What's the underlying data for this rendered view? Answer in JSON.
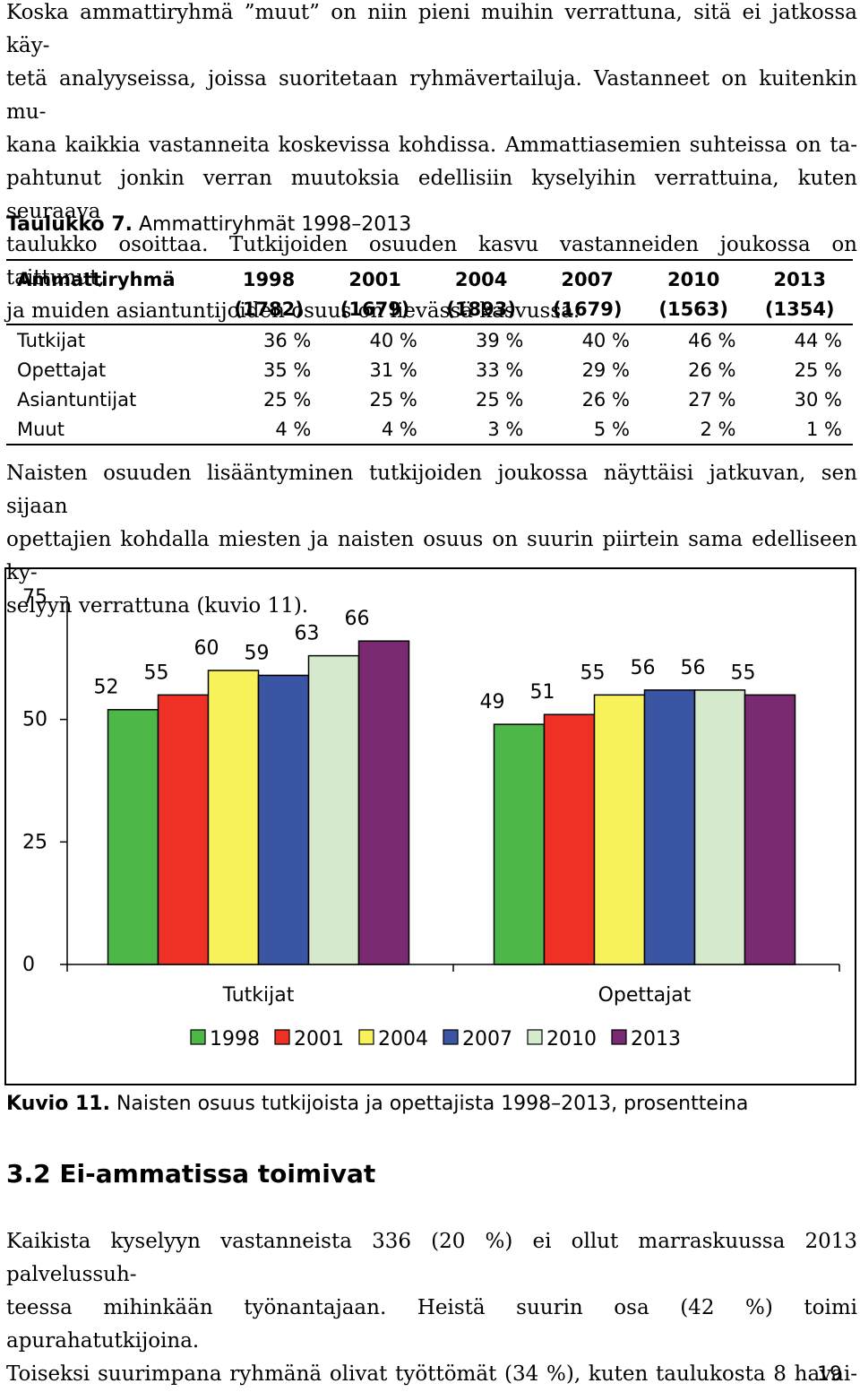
{
  "intro_paragraph": {
    "lines": [
      "Koska ammattiryhmä ”muut” on niin pieni muihin verrattuna, sitä ei jatkossa käy-",
      "tetä analyyseissa, joissa suoritetaan ryhmävertailuja. Vastanneet on kuitenkin mu-",
      "kana kaikkia vastanneita koskevissa kohdissa. Ammattiasemien suhteissa on ta-",
      "pahtunut jonkin verran muutoksia edellisiin kyselyihin verrattuina, kuten seuraava",
      "taulukko osoittaa. Tutkijoiden osuuden kasvu vastanneiden joukossa on taittunut,",
      "ja muiden asiantuntijoiden osuus on lievässä kasvussa."
    ]
  },
  "table": {
    "caption_label": "Taulukko 7.",
    "caption_text": "Ammattiryhmät 1998–2013",
    "header_first": "Ammattiryhmä",
    "years": [
      "1998",
      "2001",
      "2004",
      "2007",
      "2010",
      "2013"
    ],
    "counts": [
      "(1782)",
      "(1679)",
      "(1893)",
      "(1679)",
      "(1563)",
      "(1354)"
    ],
    "rows": [
      {
        "label": "Tutkijat",
        "values": [
          "36 %",
          "40 %",
          "39 %",
          "40 %",
          "46 %",
          "44 %"
        ]
      },
      {
        "label": "Opettajat",
        "values": [
          "35 %",
          "31 %",
          "33 %",
          "29 %",
          "26 %",
          "25 %"
        ]
      },
      {
        "label": "Asiantuntijat",
        "values": [
          "25 %",
          "25 %",
          "25 %",
          "26 %",
          "27 %",
          "30 %"
        ]
      },
      {
        "label": "Muut",
        "values": [
          "4 %",
          "4 %",
          "3 %",
          "5 %",
          "2 %",
          "1 %"
        ]
      }
    ]
  },
  "middle_paragraph": {
    "lines": [
      "Naisten osuuden lisääntyminen tutkijoiden joukossa näyttäisi jatkuvan, sen sijaan",
      "opettajien kohdalla miesten ja naisten osuus on suurin piirtein sama edelliseen ky-",
      "selyyn verrattuna (kuvio 11)."
    ]
  },
  "chart_data": {
    "type": "bar",
    "categories": [
      "Tutkijat",
      "Opettajat"
    ],
    "series": [
      {
        "name": "1998",
        "color": "#4db848",
        "values": [
          52,
          49
        ]
      },
      {
        "name": "2001",
        "color": "#ee3124",
        "values": [
          55,
          51
        ]
      },
      {
        "name": "2004",
        "color": "#f8f25a",
        "values": [
          60,
          55
        ]
      },
      {
        "name": "2007",
        "color": "#3a55a4",
        "values": [
          59,
          56
        ]
      },
      {
        "name": "2010",
        "color": "#d5eacc",
        "values": [
          63,
          56
        ]
      },
      {
        "name": "2013",
        "color": "#7a2a70",
        "values": [
          66,
          55
        ]
      }
    ],
    "yticks": [
      "0",
      "25",
      "50",
      "75"
    ],
    "ylim": [
      0,
      75
    ],
    "legend_position": "bottom",
    "grid": false
  },
  "figure": {
    "caption_label": "Kuvio 11.",
    "caption_text": "Naisten osuus tutkijoista ja opettajista 1998–2013, prosentteina"
  },
  "section": {
    "heading": "3.2 Ei-ammatissa toimivat"
  },
  "final_paragraph": {
    "lines": [
      "Kaikista kyselyyn vastanneista 336 (20 %) ei ollut marraskuussa 2013 palvelussuh-",
      "teessa mihinkään työnantajaan. Heistä suurin osa (42 %) toimi apurahatutkijoina.",
      "Toiseksi suurimpana ryhmänä olivat työttömät (34 %), kuten taulukosta 8 havai-"
    ]
  },
  "page_number": "19"
}
